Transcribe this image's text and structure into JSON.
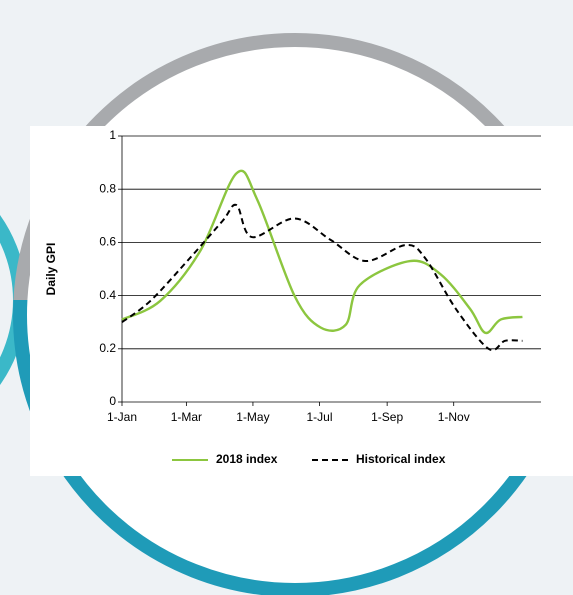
{
  "chart_data": {
    "type": "line",
    "y_label": "Daily GPI",
    "x": [],
    "series": [
      {
        "name": "2018 index",
        "color": "#8cc63f",
        "dash": false,
        "x": [
          0,
          35,
          72,
          105,
          124,
          158,
          182,
          205,
          218,
          264,
          292,
          319,
          333,
          347,
          367
        ],
        "values": [
          0.31,
          0.38,
          0.57,
          0.86,
          0.76,
          0.4,
          0.28,
          0.29,
          0.44,
          0.53,
          0.48,
          0.35,
          0.26,
          0.31,
          0.32
        ]
      },
      {
        "name": "Historical index",
        "color": "#000000",
        "dash": true,
        "x": [
          0,
          26,
          62,
          92,
          105,
          119,
          158,
          191,
          223,
          260,
          278,
          306,
          336,
          351,
          367
        ],
        "values": [
          0.3,
          0.38,
          0.54,
          0.68,
          0.74,
          0.62,
          0.69,
          0.61,
          0.53,
          0.59,
          0.54,
          0.35,
          0.2,
          0.23,
          0.23
        ]
      }
    ],
    "xlim": [
      0,
      384
    ],
    "xticks": [
      {
        "value": 0,
        "label": "1-Jan"
      },
      {
        "value": 59,
        "label": "1-Mar"
      },
      {
        "value": 120,
        "label": "1-May"
      },
      {
        "value": 181,
        "label": "1-Jul"
      },
      {
        "value": 243,
        "label": "1-Sep"
      },
      {
        "value": 304,
        "label": "1-Nov"
      }
    ],
    "ylim": [
      0,
      1
    ],
    "yticks": [
      0,
      0.2,
      0.4,
      0.6,
      0.8,
      1
    ],
    "grid": true
  }
}
